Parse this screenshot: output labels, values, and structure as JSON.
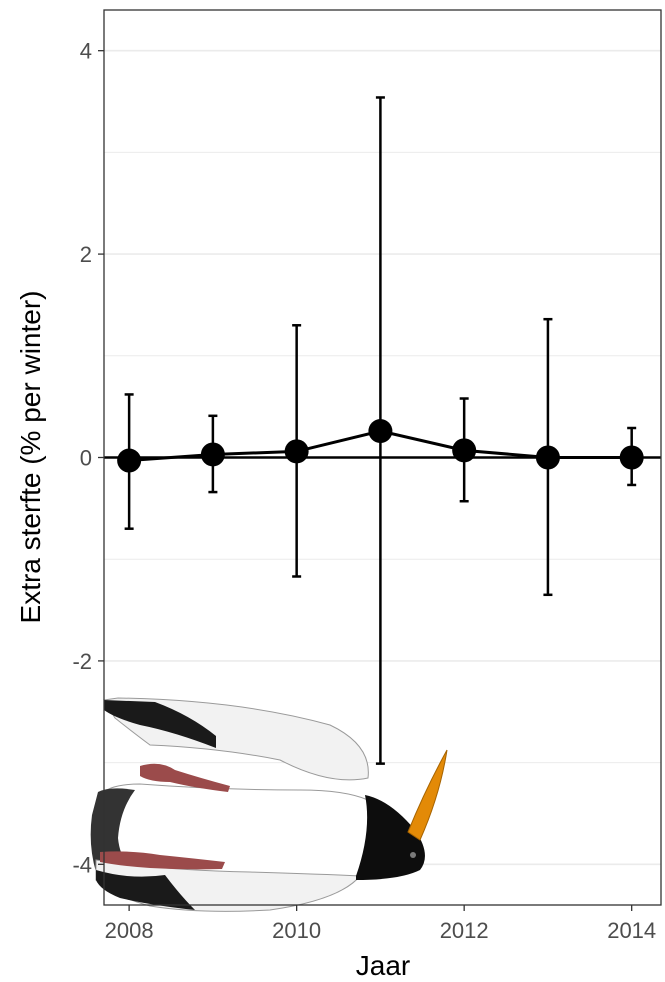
{
  "chart_data": {
    "type": "scatter",
    "xlabel": "Jaar",
    "ylabel": "Extra sterfte (% per winter)",
    "xlim": [
      2007.7,
      2014.35
    ],
    "ylim": [
      -4.4,
      4.4
    ],
    "x_ticks": [
      2008,
      2010,
      2012,
      2014
    ],
    "y_ticks": [
      -4,
      -2,
      0,
      2,
      4
    ],
    "x_tick_labels": [
      "2008",
      "2010",
      "2012",
      "2014"
    ],
    "y_tick_labels": [
      "-4",
      "-2",
      "0",
      "2",
      "4"
    ],
    "grid": true,
    "reference_line_y": 0,
    "series": [
      {
        "x": [
          2008,
          2009,
          2010,
          2011,
          2012,
          2013,
          2014
        ],
        "y": [
          -0.03,
          0.03,
          0.06,
          0.26,
          0.07,
          0.0,
          0.0
        ],
        "lower": [
          -0.7,
          -0.34,
          -1.17,
          -3.01,
          -0.43,
          -1.35,
          -0.27
        ],
        "upper": [
          0.62,
          0.41,
          1.3,
          3.54,
          0.58,
          1.36,
          0.29
        ]
      }
    ],
    "colors": {
      "points": "#000000",
      "grid": "#ebebeb",
      "panel_border": "#333333"
    },
    "illustration": "oystercatcher-silhouette"
  }
}
